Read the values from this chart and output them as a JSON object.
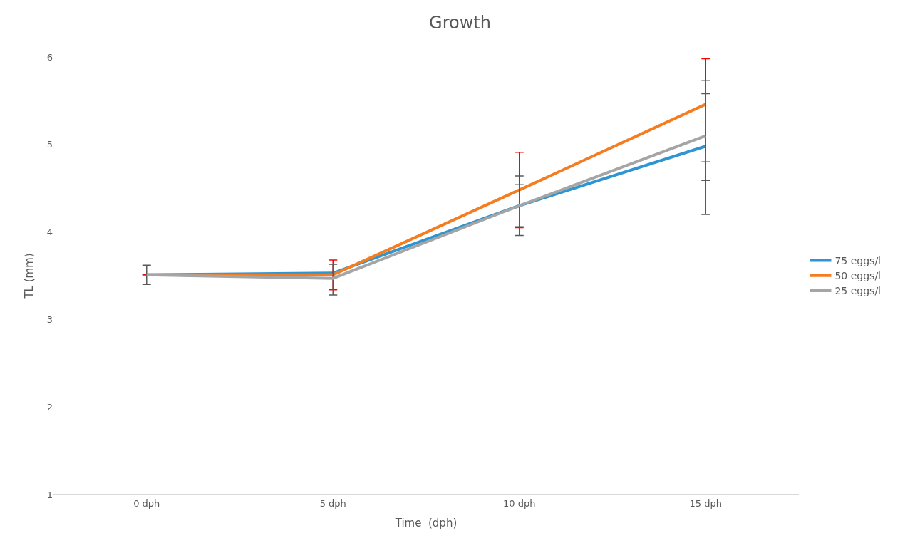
{
  "chart_data": {
    "type": "line",
    "title": "Growth",
    "xlabel": "Time  (dph)",
    "ylabel": "TL (mm)",
    "categories": [
      "0 dph",
      "5 dph",
      "10 dph",
      "15 dph"
    ],
    "series": [
      {
        "name": "75 eggs/l",
        "color": "#2e95d3",
        "values": [
          3.51,
          3.53,
          4.3,
          4.98
        ],
        "errors": [
          null,
          null,
          0.34,
          [
            4.2,
            5.58
          ]
        ]
      },
      {
        "name": "50 eggs/l",
        "color": "#f57d21",
        "values": [
          3.51,
          3.51,
          4.48,
          5.46
        ],
        "errors": [
          null,
          0.17,
          0.43,
          [
            4.8,
            5.98
          ]
        ]
      },
      {
        "name": "25 eggs/l",
        "color": "#a5a5a5",
        "values": [
          3.51,
          3.47,
          4.3,
          5.1
        ],
        "errors": [
          0.11,
          [
            3.28,
            3.63
          ],
          0.24,
          [
            4.59,
            5.73
          ]
        ]
      }
    ],
    "ylim": [
      1,
      6
    ],
    "yticks": [
      1,
      2,
      3,
      4,
      5,
      6
    ],
    "legend": "right",
    "marker": "none",
    "line_style": "solid"
  }
}
